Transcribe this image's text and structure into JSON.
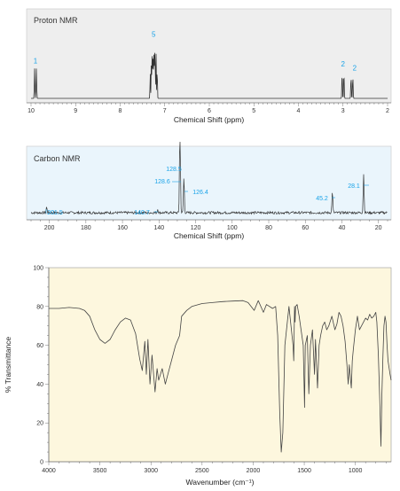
{
  "chart_data": [
    {
      "type": "line",
      "title": "Proton NMR",
      "xlabel": "Chemical Shift (ppm)",
      "xlim": [
        10,
        2
      ],
      "x_ticks": [
        10,
        9,
        8,
        7,
        6,
        5,
        4,
        3,
        2
      ],
      "peaks": [
        {
          "shift": 9.9,
          "height": 0.45,
          "label": "1"
        },
        {
          "shift": 7.25,
          "height": 0.85,
          "label": "5"
        },
        {
          "shift": 3.0,
          "height": 0.4,
          "label": "2"
        },
        {
          "shift": 2.8,
          "height": 0.34,
          "label": "2"
        }
      ]
    },
    {
      "type": "line",
      "title": "Carbon NMR",
      "xlabel": "Chemical Shift (ppm)",
      "xlim": [
        210,
        15
      ],
      "x_ticks": [
        200,
        180,
        160,
        140,
        120,
        100,
        80,
        60,
        40,
        20
      ],
      "peaks": [
        {
          "shift": 201.5,
          "height": 0.08,
          "label": "201.5"
        },
        {
          "shift": 140.7,
          "height": 0.05,
          "label": "140.7"
        },
        {
          "shift": 128.5,
          "height": 0.7,
          "label": "128.5"
        },
        {
          "shift": 128.6,
          "height": 0.68,
          "label": "128.6"
        },
        {
          "shift": 126.4,
          "height": 0.5,
          "label": "126.4"
        },
        {
          "shift": 45.2,
          "height": 0.3,
          "label": "45.2"
        },
        {
          "shift": 28.1,
          "height": 0.55,
          "label": "28.1"
        }
      ]
    },
    {
      "type": "line",
      "title": "",
      "xlabel": "Wavenumber (cm⁻¹)",
      "ylabel": "% Transmittance",
      "xlim": [
        4000,
        650
      ],
      "ylim": [
        0,
        100
      ],
      "x_ticks": [
        4000,
        3500,
        3000,
        2500,
        2000,
        1500,
        1000
      ],
      "y_ticks": [
        0,
        20,
        40,
        60,
        80,
        100
      ],
      "series": [
        {
          "x": [
            4000,
            3900,
            3800,
            3700,
            3650,
            3600,
            3550,
            3500,
            3450,
            3400,
            3350,
            3300,
            3250,
            3200,
            3150,
            3110,
            3085,
            3060,
            3045,
            3030,
            3010,
            2990,
            2960,
            2940,
            2925,
            2890,
            2860,
            2830,
            2800,
            2760,
            2720,
            2700,
            2650,
            2600,
            2500,
            2400,
            2300,
            2200,
            2100,
            2050,
            1990,
            1950,
            1900,
            1870,
            1810,
            1780,
            1760,
            1740,
            1725,
            1710,
            1690,
            1650,
            1610,
            1603,
            1595,
            1590,
            1585,
            1570,
            1550,
            1510,
            1497,
            1490,
            1470,
            1455,
            1440,
            1420,
            1400,
            1390,
            1370,
            1355,
            1340,
            1320,
            1300,
            1280,
            1260,
            1230,
            1200,
            1180,
            1160,
            1140,
            1120,
            1100,
            1080,
            1070,
            1060,
            1040,
            1030,
            1020,
            1000,
            980,
            960,
            940,
            920,
            900,
            880,
            860,
            840,
            820,
            800,
            790,
            775,
            760,
            750,
            740,
            730,
            720,
            710,
            700,
            690,
            680,
            660,
            650
          ],
          "y": [
            79,
            79,
            79.5,
            79,
            78,
            75,
            68,
            63,
            61,
            63,
            68,
            72,
            74,
            73,
            66,
            53,
            47,
            62,
            45,
            63,
            40,
            55,
            36,
            48,
            42,
            48,
            40,
            46,
            52,
            60,
            65,
            75,
            78,
            80,
            81.5,
            82,
            82.5,
            82.8,
            83,
            82,
            78,
            83,
            77,
            81,
            79,
            80,
            65,
            25,
            5,
            15,
            60,
            80,
            60,
            52,
            80,
            72,
            80,
            81,
            75,
            60,
            28,
            60,
            65,
            35,
            60,
            68,
            45,
            63,
            38,
            60,
            65,
            70,
            72,
            68,
            70,
            75,
            68,
            71,
            77,
            75,
            70,
            62,
            48,
            40,
            50,
            38,
            52,
            58,
            68,
            75,
            68,
            70,
            72,
            74,
            73,
            76,
            74,
            75,
            77,
            72,
            55,
            30,
            8,
            35,
            55,
            70,
            75,
            72,
            60,
            52,
            45,
            42
          ]
        }
      ]
    }
  ]
}
